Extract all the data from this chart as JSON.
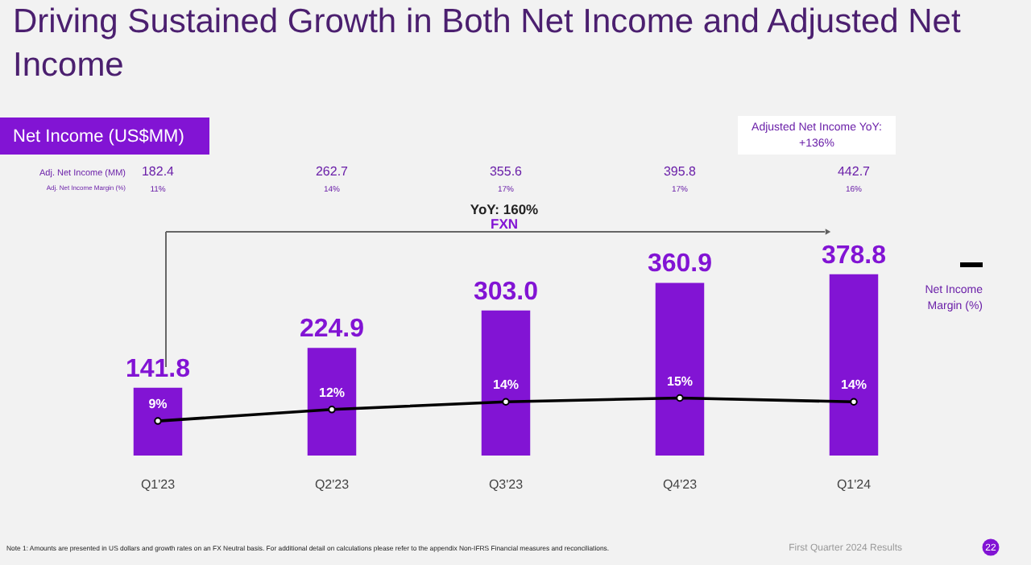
{
  "chart_data": {
    "type": "bar",
    "title": [
      "Driving Sustained Growth in Both Net Income and Adjusted Net",
      "Income"
    ],
    "subtitle": "Net Income (US$MM)",
    "categories": [
      "Q1'23",
      "Q2'23",
      "Q3'23",
      "Q4'23",
      "Q1'24"
    ],
    "series": [
      {
        "name": null,
        "color": "#8214d4",
        "values": [
          141.8,
          224.9,
          303.0,
          360.9,
          378.8
        ],
        "value_labels": [
          "141.8",
          "224.9",
          "303.0",
          "360.9",
          "378.8"
        ]
      },
      {
        "name": "Net Income Margin (%)",
        "type": "line",
        "axis": "y2",
        "color": "#000000",
        "marker": "circle",
        "values": [
          9,
          12,
          14,
          15,
          14
        ],
        "value_labels": [
          "9%",
          "12%",
          "14%",
          "15%",
          "14%"
        ]
      }
    ],
    "tick_labels": "x",
    "grid": false,
    "legend": "right",
    "annotations": [
      "Adj. Net Income (MM)",
      "Adj. Net Income Margin (%)",
      "182.4",
      "262.7",
      "355.6",
      "395.8",
      "442.7",
      "11%",
      "14%",
      "17%",
      "17%",
      "16%",
      "Adjusted Net Income YoY:",
      "+136%",
      "YoY: 160%",
      "FXN",
      "Note 1: Amounts are presented in US dollars and growth rates on an FX Neutral basis. For additional detail on calculations please refer to the appendix Non-IFRS Financial measures and reconciliations.",
      "First Quarter 2024 Results",
      "22"
    ]
  }
}
